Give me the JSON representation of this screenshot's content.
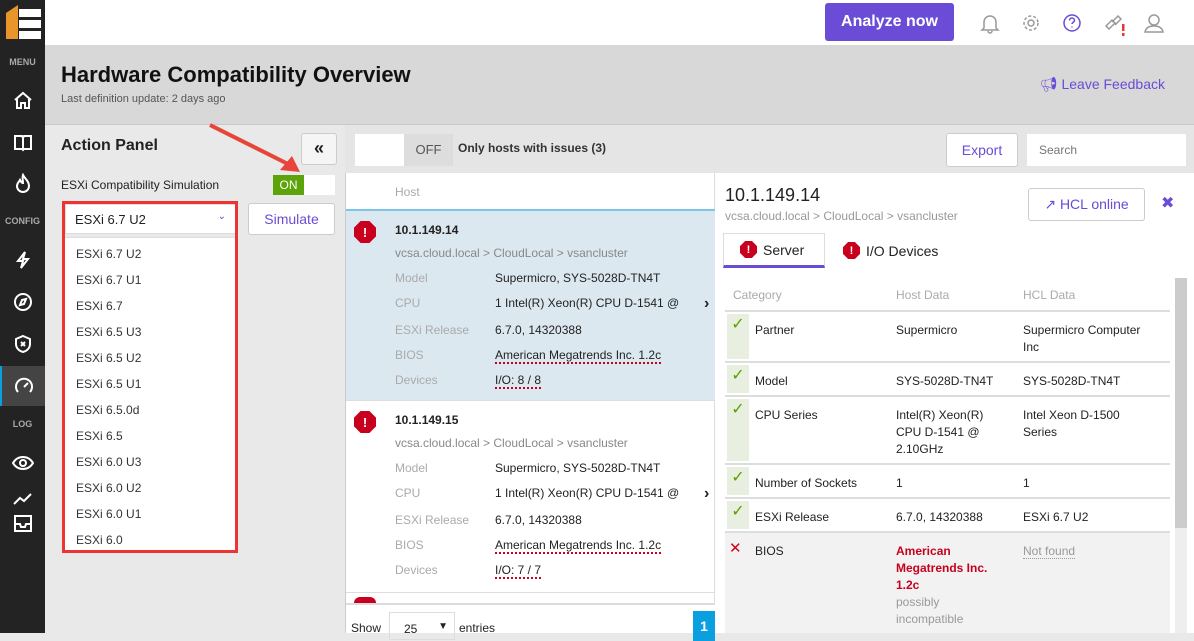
{
  "sidebar": {
    "sections": [
      "MENU",
      "CONFIG",
      "LOG"
    ],
    "icons": [
      "home-icon",
      "book-icon",
      "fire-icon",
      "bolt-icon",
      "compass-icon",
      "shield-x-icon",
      "gauge-icon",
      "eye-icon",
      "chart-line-icon",
      "inbox-icon"
    ]
  },
  "topbar": {
    "analyze_label": "Analyze now"
  },
  "header": {
    "title": "Hardware Compatibility Overview",
    "subtitle": "Last definition update: 2 days ago",
    "feedback": "Leave Feedback"
  },
  "action_panel": {
    "title": "Action Panel",
    "collapse": "«",
    "simulation_label": "ESXi Compatibility Simulation",
    "toggle": "ON",
    "selected": "ESXi 6.7 U2",
    "simulate": "Simulate",
    "options": [
      "ESXi 6.7 U2",
      "ESXi 6.7 U1",
      "ESXi 6.7",
      "ESXi 6.5 U3",
      "ESXi 6.5 U2",
      "ESXi 6.5 U1",
      "ESXi 6.5.0d",
      "ESXi 6.5",
      "ESXi 6.0 U3",
      "ESXi 6.0 U2",
      "ESXi 6.0 U1",
      "ESXi 6.0"
    ]
  },
  "toolbar": {
    "toggle": "OFF",
    "filter_label": "Only hosts with issues (3)",
    "export": "Export",
    "search_placeholder": "Search"
  },
  "list": {
    "column": "Host",
    "labels": {
      "model": "Model",
      "cpu": "CPU",
      "esxi": "ESXi Release",
      "bios": "BIOS",
      "devices": "Devices"
    },
    "hosts": [
      {
        "ip": "10.1.149.14",
        "path": "vcsa.cloud.local > CloudLocal > vsancluster",
        "model": "Supermicro, SYS-5028D-TN4T",
        "cpu": "1 Intel(R) Xeon(R) CPU D-1541 @",
        "esxi": "6.7.0, 14320388",
        "bios": "American Megatrends Inc. 1.2c",
        "devices": "I/O: 8 / 8"
      },
      {
        "ip": "10.1.149.15",
        "path": "vcsa.cloud.local > CloudLocal > vsancluster",
        "model": "Supermicro, SYS-5028D-TN4T",
        "cpu": "1 Intel(R) Xeon(R) CPU D-1541 @",
        "esxi": "6.7.0, 14320388",
        "bios": "American Megatrends Inc. 1.2c",
        "devices": "I/O: 7 / 7"
      }
    ],
    "show": "Show",
    "entries_value": "25",
    "entries": "entries",
    "page": "1"
  },
  "detail": {
    "ip": "10.1.149.14",
    "path": "vcsa.cloud.local > CloudLocal > vsancluster",
    "hcl_online": "HCL online",
    "tabs": [
      "Server",
      "I/O Devices"
    ],
    "columns": [
      "Category",
      "Host Data",
      "HCL Data"
    ],
    "rows": [
      {
        "status": "ok",
        "category": "Partner",
        "host": "Supermicro",
        "hcl": "Supermicro Computer Inc"
      },
      {
        "status": "ok",
        "category": "Model",
        "host": "SYS-5028D-TN4T",
        "hcl": "SYS-5028D-TN4T"
      },
      {
        "status": "ok",
        "category": "CPU Series",
        "host": "Intel(R) Xeon(R) CPU D-1541 @ 2.10GHz",
        "hcl": "Intel Xeon D-1500 Series"
      },
      {
        "status": "ok",
        "category": "Number of Sockets",
        "host": "1",
        "hcl": "1"
      },
      {
        "status": "ok",
        "category": "ESXi Release",
        "host": "6.7.0, 14320388",
        "hcl": "ESXi 6.7 U2"
      },
      {
        "status": "error",
        "category": "BIOS",
        "host": "American Megatrends Inc. 1.2c",
        "host_note": "possibly incompatible",
        "hcl": "Not found"
      }
    ]
  },
  "colors": {
    "accent": "#6a4cd6",
    "error": "#c8001e",
    "ok": "#5aa000",
    "toggle_on": "#5ca40a",
    "selected_row": "#dce8f0"
  }
}
